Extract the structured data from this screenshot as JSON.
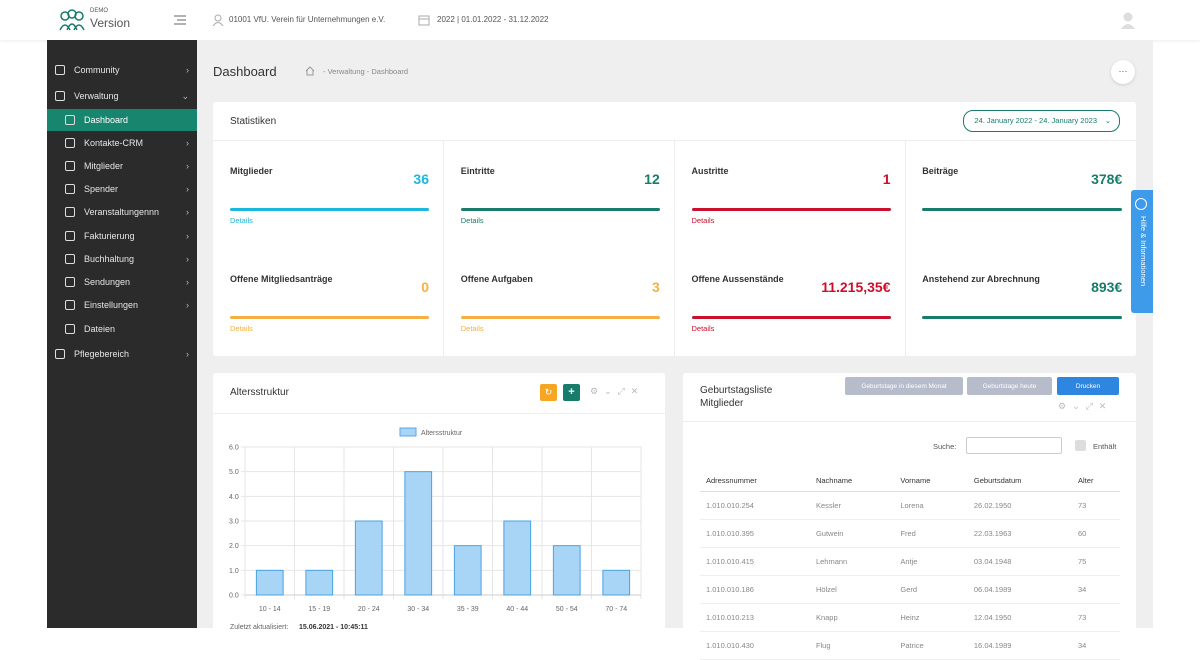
{
  "header": {
    "logo_small": "DEMO",
    "logo": "Version",
    "org": "01001 VfU. Verein für Unternehmungen e.V.",
    "period": "2022 | 01.01.2022 - 31.12.2022"
  },
  "sidebar": {
    "items": [
      {
        "label": "Community",
        "level": 0
      },
      {
        "label": "Verwaltung",
        "level": 0
      },
      {
        "label": "Dashboard",
        "level": 1,
        "active": true
      },
      {
        "label": "Kontakte-CRM",
        "level": 1
      },
      {
        "label": "Mitglieder",
        "level": 1
      },
      {
        "label": "Spender",
        "level": 1
      },
      {
        "label": "Veranstaltungennn",
        "level": 1
      },
      {
        "label": "Fakturierung",
        "level": 1
      },
      {
        "label": "Buchhaltung",
        "level": 1
      },
      {
        "label": "Sendungen",
        "level": 1
      },
      {
        "label": "Einstellungen",
        "level": 1
      },
      {
        "label": "Dateien",
        "level": 1
      },
      {
        "label": "Pflegebereich",
        "level": 0
      }
    ]
  },
  "page": {
    "title": "Dashboard",
    "breadcrumb": "- Verwaltung - Dashboard"
  },
  "help_tab": "Hilfe & Informationen",
  "stats": {
    "title": "Statistiken",
    "range": "24. January 2022 - 24. January 2023",
    "cards": [
      {
        "label": "Mitglieder",
        "value": 36,
        "link": "Details",
        "color": "#1ab8dc"
      },
      {
        "label": "Eintritte",
        "value": 12,
        "link": "Details",
        "color": "#187c6b"
      },
      {
        "label": "Austritte",
        "value": 1,
        "link": "Details",
        "color": "#cc0f2d"
      },
      {
        "label": "Beiträge",
        "value": "378€",
        "color": "#187c6b"
      },
      {
        "label": "Offene Mitgliedsanträge",
        "value": 0,
        "link": "Details",
        "color": "#f5b041"
      },
      {
        "label": "Offene Aufgaben",
        "value": 3,
        "link": "Details",
        "color": "#f5b041"
      },
      {
        "label": "Offene Aussenstände",
        "value": "11.215,35€",
        "link": "Details",
        "color": "#cc0f2d"
      },
      {
        "label": "Anstehend zur Abrechnung",
        "value": "893€",
        "color": "#187c6b"
      }
    ]
  },
  "chart_data": {
    "type": "bar",
    "title": "Altersstruktur",
    "categories": [
      "10 - 14",
      "15 - 19",
      "20 - 24",
      "30 - 34",
      "35 - 39",
      "40 - 44",
      "50 - 54",
      "70 - 74"
    ],
    "series": [
      {
        "name": "Altersstruktur",
        "color": "#a8d4f5",
        "values": [
          1,
          1,
          3,
          5,
          2,
          3,
          2,
          1
        ]
      }
    ],
    "ylim": [
      0,
      6
    ],
    "yticks": [
      {
        "value": 0,
        "label": "0.0"
      },
      {
        "value": 1,
        "label": "1.0"
      },
      {
        "value": 2,
        "label": "2.0"
      },
      {
        "value": 3,
        "label": "3.0"
      },
      {
        "value": 4,
        "label": "4.0"
      },
      {
        "value": 5,
        "label": "5.0"
      },
      {
        "value": 6,
        "label": "6.0"
      }
    ],
    "grid": true,
    "footer_label": "Zuletzt aktualisiert:",
    "footer_value": "15.06.2021 - 10:45:11"
  },
  "birthdays": {
    "title": "Geburtstagsliste Mitglieder",
    "buttons": [
      "Geburtstage in diesem Monat",
      "Geburtstage heute",
      "Drucken"
    ],
    "search_label": "Suche:",
    "contains_label": "Enthält",
    "columns": [
      "Adressnummer",
      "Nachname",
      "Vorname",
      "Geburtsdatum",
      "Alter"
    ],
    "rows": [
      [
        "1.010.010.254",
        "Kessler",
        "Lorena",
        "26.02.1950",
        73
      ],
      [
        "1.010.010.395",
        "Gutwein",
        "Fred",
        "22.03.1963",
        60
      ],
      [
        "1.010.010.415",
        "Lehmann",
        "Antje",
        "03.04.1948",
        75
      ],
      [
        "1.010.010.186",
        "Hölzel",
        "Gerd",
        "06.04.1989",
        34
      ],
      [
        "1.010.010.213",
        "Knapp",
        "Heinz",
        "12.04.1950",
        73
      ],
      [
        "1.010.010.430",
        "Flug",
        "Patrice",
        "16.04.1989",
        34
      ]
    ]
  }
}
